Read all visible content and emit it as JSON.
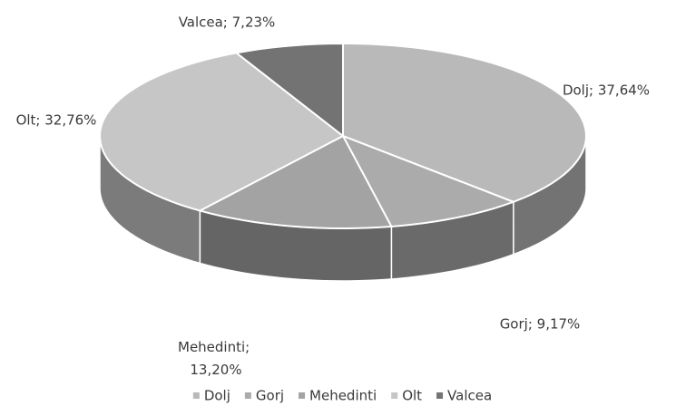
{
  "chart_data": {
    "type": "pie",
    "categories": [
      "Dolj",
      "Gorj",
      "Mehedinti",
      "Olt",
      "Valcea"
    ],
    "values": [
      37.64,
      9.17,
      13.2,
      32.76,
      7.23
    ],
    "value_labels": [
      "Dolj; 37,64%",
      "Gorj; 9,17%",
      "Mehedinti; 13,20%",
      "Olt; 32,76%",
      "Valcea; 7,23%"
    ],
    "colors": [
      "#b9b9b9",
      "#ababab",
      "#a3a3a3",
      "#c6c6c6",
      "#737373"
    ],
    "legend": "bottom"
  }
}
